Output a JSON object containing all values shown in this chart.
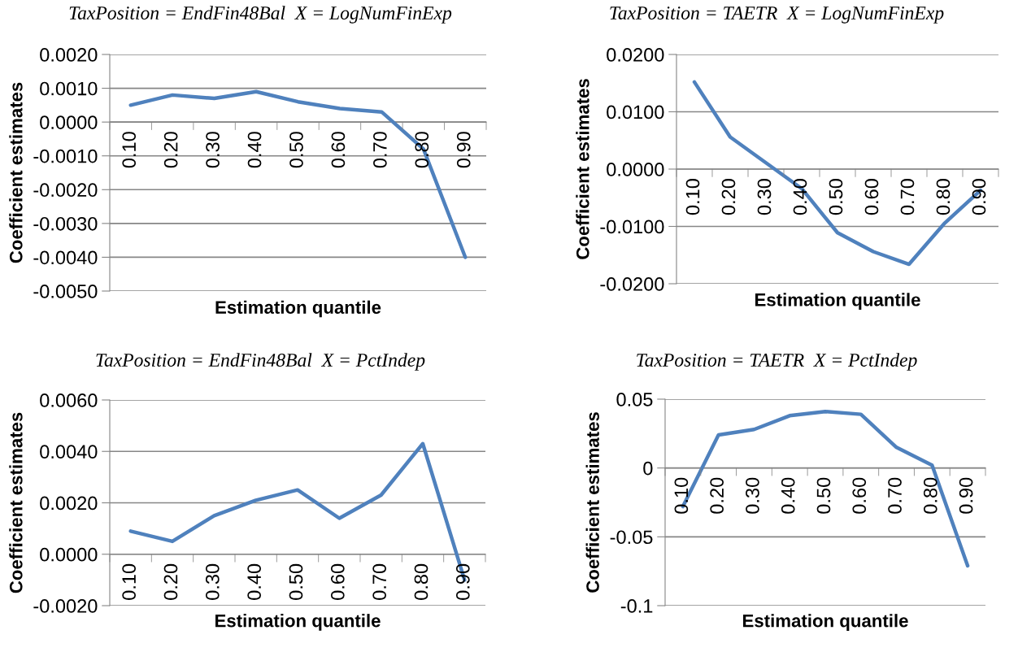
{
  "chart_data": [
    {
      "type": "line",
      "title": "TaxPosition = EndFin48Bal  X = LogNumFinExp",
      "xlabel": "Estimation quantile",
      "ylabel": "Coefficient estimates",
      "categories": [
        "0.10",
        "0.20",
        "0.30",
        "0.40",
        "0.50",
        "0.60",
        "0.70",
        "0.80",
        "0.90"
      ],
      "series": [
        {
          "color": "#4f81bd",
          "values": [
            0.0005,
            0.0008,
            0.0007,
            0.0009,
            0.0006,
            0.0004,
            0.0003,
            -0.0008,
            -0.004
          ]
        }
      ],
      "ylim": [
        -0.005,
        0.002
      ],
      "yticks": [
        {
          "value": -0.005,
          "label": "-0.0050"
        },
        {
          "value": -0.004,
          "label": "-0.0040"
        },
        {
          "value": -0.003,
          "label": "-0.0030"
        },
        {
          "value": -0.002,
          "label": "-0.0020"
        },
        {
          "value": -0.001,
          "label": "-0.0010"
        },
        {
          "value": 0,
          "label": "0.0000"
        },
        {
          "value": 0.001,
          "label": "0.0010"
        },
        {
          "value": 0.002,
          "label": "0.0020"
        }
      ],
      "grid": "y",
      "legend": false,
      "marker": "none",
      "line_style": "solid"
    },
    {
      "type": "line",
      "title": "TaxPosition = TAETR  X = LogNumFinExp",
      "xlabel": "Estimation quantile",
      "ylabel": "Coefficient estimates",
      "categories": [
        "0.10",
        "0.20",
        "0.30",
        "0.40",
        "0.50",
        "0.60",
        "0.70",
        "0.80",
        "0.90"
      ],
      "series": [
        {
          "color": "#4f81bd",
          "values": [
            0.0152,
            0.0056,
            0.0011,
            -0.0034,
            -0.0111,
            -0.0144,
            -0.0166,
            -0.0094,
            -0.0037
          ]
        }
      ],
      "ylim": [
        -0.02,
        0.02
      ],
      "yticks": [
        {
          "value": -0.02,
          "label": "-0.0200"
        },
        {
          "value": -0.01,
          "label": "-0.0100"
        },
        {
          "value": 0,
          "label": "0.0000"
        },
        {
          "value": 0.01,
          "label": "0.0100"
        },
        {
          "value": 0.02,
          "label": "0.0200"
        }
      ],
      "grid": "y",
      "legend": false,
      "marker": "none",
      "line_style": "solid"
    },
    {
      "type": "line",
      "title": "TaxPosition = EndFin48Bal  X = PctIndep",
      "xlabel": "Estimation quantile",
      "ylabel": "Coefficient estimates",
      "categories": [
        "0.10",
        "0.20",
        "0.30",
        "0.40",
        "0.50",
        "0.60",
        "0.70",
        "0.80",
        "0.90"
      ],
      "series": [
        {
          "color": "#4f81bd",
          "values": [
            0.0009,
            0.0005,
            0.0015,
            0.0021,
            0.0025,
            0.0014,
            0.0023,
            0.0043,
            -0.001
          ]
        }
      ],
      "ylim": [
        -0.002,
        0.006
      ],
      "yticks": [
        {
          "value": -0.002,
          "label": "-0.0020"
        },
        {
          "value": 0,
          "label": "0.0000"
        },
        {
          "value": 0.002,
          "label": "0.0020"
        },
        {
          "value": 0.004,
          "label": "0.0040"
        },
        {
          "value": 0.006,
          "label": "0.0060"
        }
      ],
      "grid": "y",
      "legend": false,
      "marker": "none",
      "line_style": "solid"
    },
    {
      "type": "line",
      "title": "TaxPosition = TAETR  X = PctIndep",
      "xlabel": "Estimation quantile",
      "ylabel": "Coefficient estimates",
      "categories": [
        "0.10",
        "0.20",
        "0.30",
        "0.40",
        "0.50",
        "0.60",
        "0.70",
        "0.80",
        "0.90"
      ],
      "series": [
        {
          "color": "#4f81bd",
          "values": [
            -0.028,
            0.024,
            0.028,
            0.038,
            0.041,
            0.039,
            0.015,
            0.002,
            -0.071
          ]
        }
      ],
      "ylim": [
        -0.1,
        0.05
      ],
      "yticks": [
        -0.1,
        -0.05,
        0,
        0.05
      ],
      "grid": "y",
      "legend": false,
      "marker": "none",
      "line_style": "solid"
    }
  ]
}
